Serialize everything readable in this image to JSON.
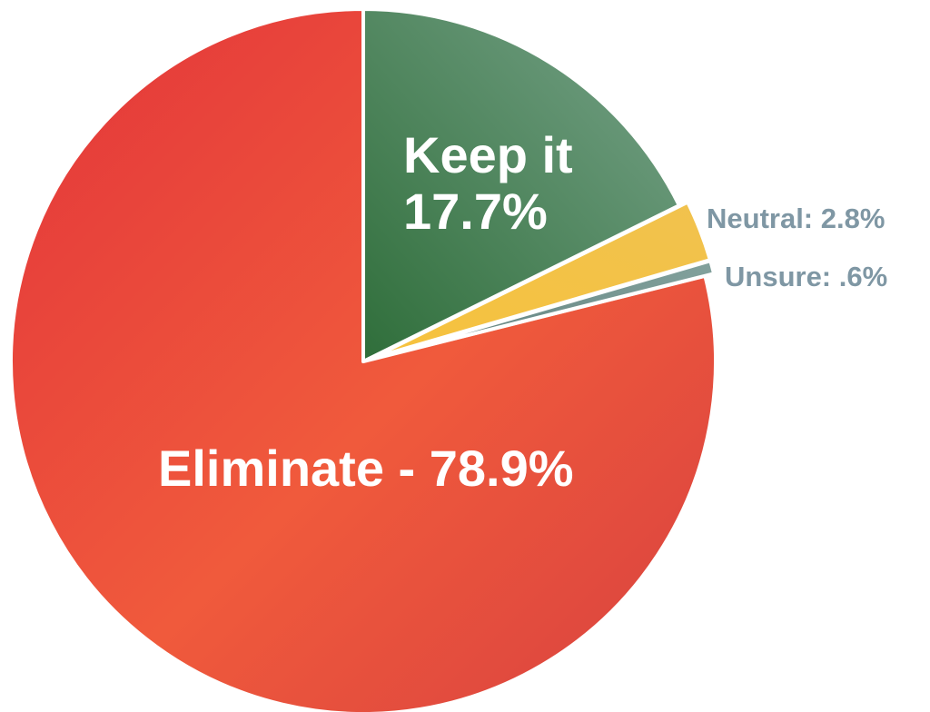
{
  "chart_data": {
    "type": "pie",
    "title": "",
    "start_angle_deg": 0,
    "direction": "clockwise",
    "slices": [
      {
        "name": "Keep it",
        "value": 17.7,
        "label_line1": "Keep it",
        "label_line2": "17.7%",
        "color": "#4a8a52",
        "exploded": false
      },
      {
        "name": "Neutral",
        "value": 2.8,
        "label": "Neutral: 2.8%",
        "color": "#f3c245",
        "exploded": true
      },
      {
        "name": "Unsure",
        "value": 0.6,
        "label": "Unsure: .6%",
        "color": "#6f8e8c",
        "exploded": true
      },
      {
        "name": "Eliminate",
        "value": 78.9,
        "label": "Eliminate - 78.9%",
        "color": "#e84b3c",
        "exploded": false
      }
    ],
    "legend": "none",
    "outside_label_color": "#7f97a4"
  }
}
